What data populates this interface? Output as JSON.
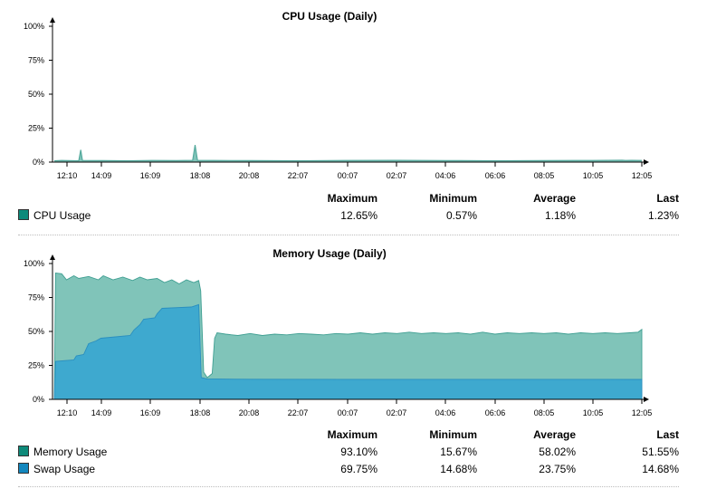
{
  "chart_data": [
    {
      "type": "area",
      "title": "CPU Usage (Daily)",
      "ylabel": "",
      "ylim": [
        0,
        100
      ],
      "y_ticks": [
        "100%",
        "75%",
        "50%",
        "25%",
        "0%"
      ],
      "x_ticks": [
        "12:10",
        "14:09",
        "16:09",
        "18:08",
        "20:08",
        "22:07",
        "00:07",
        "02:07",
        "04:06",
        "06:06",
        "08:05",
        "10:05",
        "12:05"
      ],
      "x_range": [
        "12:05",
        "12:05 (+1 day)"
      ],
      "legend": "below",
      "series": [
        {
          "name": "CPU Usage",
          "color": "#4fa79a",
          "fill": "#80c4b9",
          "swatch": "#0e8a7a",
          "points": [
            [
              0,
              1.0
            ],
            [
              0.3,
              1.2
            ],
            [
              1.0,
              1.0
            ],
            [
              1.08,
              9.0
            ],
            [
              1.15,
              1.2
            ],
            [
              2,
              1.1
            ],
            [
              3,
              1.0
            ],
            [
              4,
              1.2
            ],
            [
              5,
              1.1
            ],
            [
              5.65,
              1.3
            ],
            [
              5.75,
              12.6
            ],
            [
              5.85,
              1.3
            ],
            [
              6.5,
              1.2
            ],
            [
              8,
              1.1
            ],
            [
              10,
              1.0
            ],
            [
              12,
              1.2
            ],
            [
              14,
              1.3
            ],
            [
              16,
              1.1
            ],
            [
              18,
              1.0
            ],
            [
              20,
              1.1
            ],
            [
              22,
              1.2
            ],
            [
              23.2,
              1.4
            ],
            [
              23.33,
              1.2
            ],
            [
              23.58,
              1.3
            ],
            [
              24,
              1.2
            ]
          ]
        }
      ]
    },
    {
      "type": "area",
      "title": "Memory Usage (Daily)",
      "ylabel": "",
      "ylim": [
        0,
        100
      ],
      "y_ticks": [
        "100%",
        "75%",
        "50%",
        "25%",
        "0%"
      ],
      "x_ticks": [
        "12:10",
        "14:09",
        "16:09",
        "18:08",
        "20:08",
        "22:07",
        "00:07",
        "02:07",
        "04:06",
        "06:06",
        "08:05",
        "10:05",
        "12:05"
      ],
      "x_range": [
        "12:05",
        "12:05 (+1 day)"
      ],
      "legend": "below",
      "series": [
        {
          "name": "Memory Usage",
          "color": "#3f9f92",
          "fill": "#80c4b9",
          "swatch": "#0e8a7a",
          "points": [
            [
              0,
              0
            ],
            [
              0.05,
              93
            ],
            [
              0.3,
              92.5
            ],
            [
              0.5,
              88
            ],
            [
              0.8,
              91
            ],
            [
              1.0,
              89
            ],
            [
              1.4,
              90.5
            ],
            [
              1.8,
              88
            ],
            [
              2.0,
              91
            ],
            [
              2.4,
              88
            ],
            [
              2.8,
              90
            ],
            [
              3.2,
              87.5
            ],
            [
              3.5,
              90
            ],
            [
              3.8,
              88
            ],
            [
              4.2,
              89
            ],
            [
              4.5,
              86
            ],
            [
              4.8,
              88
            ],
            [
              5.1,
              85
            ],
            [
              5.4,
              88
            ],
            [
              5.7,
              86
            ],
            [
              5.9,
              87.5
            ],
            [
              5.98,
              80
            ],
            [
              6.03,
              55
            ],
            [
              6.1,
              20
            ],
            [
              6.25,
              16
            ],
            [
              6.45,
              19
            ],
            [
              6.55,
              45
            ],
            [
              6.65,
              49
            ],
            [
              7.0,
              48
            ],
            [
              7.5,
              47
            ],
            [
              8.0,
              48.5
            ],
            [
              8.5,
              47
            ],
            [
              9.0,
              48
            ],
            [
              9.5,
              47.5
            ],
            [
              10.0,
              48.5
            ],
            [
              10.5,
              48
            ],
            [
              11.0,
              47.5
            ],
            [
              11.5,
              48.5
            ],
            [
              12.0,
              48
            ],
            [
              12.5,
              49
            ],
            [
              13.0,
              48
            ],
            [
              13.5,
              49
            ],
            [
              14.0,
              48.5
            ],
            [
              14.5,
              49.5
            ],
            [
              15.0,
              48.5
            ],
            [
              15.5,
              49
            ],
            [
              16.0,
              48.5
            ],
            [
              16.5,
              49
            ],
            [
              17.0,
              48
            ],
            [
              17.5,
              49.5
            ],
            [
              18.0,
              48
            ],
            [
              18.5,
              49
            ],
            [
              19.0,
              48.5
            ],
            [
              19.5,
              49
            ],
            [
              20.0,
              48.5
            ],
            [
              20.5,
              49
            ],
            [
              21.0,
              48
            ],
            [
              21.5,
              49
            ],
            [
              22.0,
              48.5
            ],
            [
              22.5,
              49
            ],
            [
              23.0,
              48.5
            ],
            [
              23.5,
              49
            ],
            [
              23.85,
              49.5
            ],
            [
              24.0,
              51.5
            ],
            [
              24,
              0
            ]
          ]
        },
        {
          "name": "Swap Usage",
          "color": "#2a8fbf",
          "fill": "#3ea9cf",
          "swatch": "#1387be",
          "points": [
            [
              0,
              0
            ],
            [
              0.05,
              28
            ],
            [
              0.8,
              29
            ],
            [
              0.9,
              32
            ],
            [
              1.2,
              33
            ],
            [
              1.4,
              41
            ],
            [
              1.7,
              43
            ],
            [
              1.9,
              45
            ],
            [
              2.5,
              46
            ],
            [
              3.1,
              47
            ],
            [
              3.25,
              51
            ],
            [
              3.5,
              55
            ],
            [
              3.65,
              59
            ],
            [
              4.1,
              60
            ],
            [
              4.2,
              63
            ],
            [
              4.4,
              67
            ],
            [
              5.6,
              68
            ],
            [
              5.9,
              69.75
            ],
            [
              6.0,
              16
            ],
            [
              6.25,
              15
            ],
            [
              8,
              14.8
            ],
            [
              12,
              14.7
            ],
            [
              16,
              14.7
            ],
            [
              20,
              14.7
            ],
            [
              24,
              14.68
            ],
            [
              24,
              0
            ]
          ]
        }
      ]
    }
  ],
  "stats": {
    "headers": [
      "Maximum",
      "Minimum",
      "Average",
      "Last"
    ],
    "cpu": [
      {
        "name": "CPU Usage",
        "swatch": "#0e8a7a",
        "maximum": "12.65%",
        "minimum": "0.57%",
        "average": "1.18%",
        "last": "1.23%"
      }
    ],
    "memory": [
      {
        "name": "Memory Usage",
        "swatch": "#0e8a7a",
        "maximum": "93.10%",
        "minimum": "15.67%",
        "average": "58.02%",
        "last": "51.55%"
      },
      {
        "name": "Swap Usage",
        "swatch": "#1387be",
        "maximum": "69.75%",
        "minimum": "14.68%",
        "average": "23.75%",
        "last": "14.68%"
      }
    ]
  }
}
